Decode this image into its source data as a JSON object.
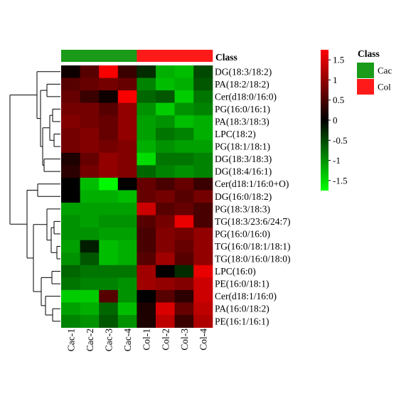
{
  "chart_data": {
    "type": "heatmap",
    "class_bar_title": "Class",
    "columns": [
      "Cac-1",
      "Cac-2",
      "Cac-3",
      "Cac-4",
      "Col-1",
      "Col-2",
      "Col-3",
      "Col-4"
    ],
    "column_classes": [
      "Cac",
      "Cac",
      "Cac",
      "Cac",
      "Col",
      "Col",
      "Col",
      "Col"
    ],
    "rows": [
      "DG(18:3/18:2)",
      "PA(18:2/18:2)",
      "Cer(d18:0/16:0)",
      "PG(16:0/16:1)",
      "PA(18:3/18:3)",
      "LPC(18:2)",
      "PG(18:1/18:1)",
      "DG(18:3/18:3)",
      "DG(18:4/16:1)",
      "Cer(d18:1/16:0+O)",
      "DG(16:0/18:2)",
      "PG(18:3/18:3)",
      "TG(18:3/23:6/24:7)",
      "PG(16:0/16:0)",
      "TG(16:0/18:1/18:1)",
      "TG(18:0/16:0/18:0)",
      "LPC(16:0)",
      "PE(16:0/18:1)",
      "Cer(d18:1/16:0)",
      "PA(16:0/18:2)",
      "PE(16:1/16:1)"
    ],
    "values": [
      [
        0.1,
        0.6,
        1.7,
        0.4,
        -0.3,
        -1.2,
        -1.3,
        -0.5
      ],
      [
        0.6,
        0.7,
        0.8,
        0.7,
        -0.9,
        -1.3,
        -1.2,
        -0.6
      ],
      [
        0.7,
        0.4,
        0.1,
        1.7,
        -0.7,
        -0.6,
        -1.4,
        -0.8
      ],
      [
        0.8,
        0.8,
        0.6,
        1.0,
        -1.0,
        -1.4,
        -1.0,
        -0.9
      ],
      [
        0.9,
        0.8,
        0.7,
        1.0,
        -1.1,
        -1.0,
        -1.3,
        -1.2
      ],
      [
        0.8,
        0.9,
        0.7,
        1.0,
        -1.1,
        -0.8,
        -0.9,
        -1.2
      ],
      [
        0.8,
        0.9,
        0.8,
        0.9,
        -1.2,
        -1.0,
        -1.1,
        -1.1
      ],
      [
        0.2,
        0.7,
        1.0,
        0.9,
        -1.5,
        -0.8,
        -0.8,
        -0.9
      ],
      [
        0.3,
        0.8,
        1.0,
        0.9,
        -0.7,
        -0.9,
        -1.0,
        -0.9
      ],
      [
        0.0,
        -1.3,
        -1.7,
        0.0,
        0.7,
        0.5,
        0.7,
        0.4
      ],
      [
        0.0,
        -1.2,
        -1.2,
        -1.3,
        0.7,
        0.8,
        0.6,
        0.8
      ],
      [
        -1.1,
        -1.1,
        -1.1,
        -1.1,
        1.4,
        0.6,
        0.7,
        0.5
      ],
      [
        -1.0,
        -1.1,
        -1.0,
        -1.0,
        0.6,
        0.8,
        1.6,
        0.5
      ],
      [
        -1.0,
        -1.0,
        -1.1,
        -1.1,
        0.5,
        0.9,
        0.8,
        1.0
      ],
      [
        -1.1,
        -0.2,
        -1.3,
        -1.2,
        0.5,
        0.9,
        0.7,
        1.0
      ],
      [
        -1.0,
        -0.6,
        -1.3,
        -1.2,
        0.6,
        1.1,
        0.6,
        1.0
      ],
      [
        -0.7,
        -0.8,
        -0.8,
        -0.8,
        1.1,
        0.0,
        -0.3,
        1.6
      ],
      [
        -0.8,
        -0.9,
        -0.9,
        -1.0,
        1.1,
        1.0,
        0.9,
        1.4
      ],
      [
        -1.4,
        -1.4,
        0.6,
        -1.0,
        0.0,
        0.6,
        0.3,
        1.4
      ],
      [
        -1.1,
        -1.2,
        -0.7,
        -1.3,
        0.2,
        1.5,
        0.7,
        1.3
      ],
      [
        -0.9,
        -1.0,
        -0.6,
        -1.0,
        0.2,
        1.3,
        0.4,
        1.2
      ]
    ],
    "color_scale": {
      "min": -1.75,
      "max": 1.75,
      "low_color": "#00ff00",
      "mid_color": "#000000",
      "high_color": "#ff0000",
      "ticks": [
        1.5,
        1,
        0.5,
        0,
        -0.5,
        -1,
        -1.5
      ]
    },
    "legend": {
      "title": "Class",
      "entries": [
        {
          "label": "Cac",
          "color": "#1a9b1a"
        },
        {
          "label": "Col",
          "color": "#ff1a1a"
        }
      ]
    },
    "dendrogram": "rows"
  }
}
